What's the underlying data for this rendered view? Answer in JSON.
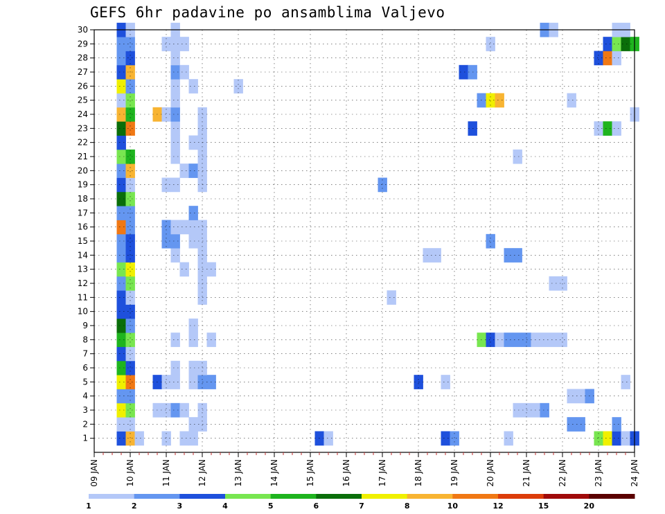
{
  "chart_data": {
    "type": "heatmap",
    "title": "GEFS 6hr padavine po ansamblima Valjevo",
    "x_tick_labels": [
      "09 JAN",
      "10 JAN",
      "11 JAN",
      "12 JAN",
      "13 JAN",
      "14 JAN",
      "15 JAN",
      "16 JAN",
      "17 JAN",
      "18 JAN",
      "19 JAN",
      "20 JAN",
      "21 JAN",
      "22 JAN",
      "23 JAN",
      "24 JAN"
    ],
    "y_tick_labels": [
      "1",
      "2",
      "3",
      "4",
      "5",
      "6",
      "7",
      "8",
      "9",
      "10",
      "11",
      "12",
      "13",
      "14",
      "15",
      "16",
      "17",
      "18",
      "19",
      "20",
      "21",
      "22",
      "23",
      "24",
      "25",
      "26",
      "27",
      "28",
      "29",
      "30"
    ],
    "ylim": [
      0.5,
      30.5
    ],
    "x_steps_per_day": 4,
    "xlim_steps": [
      0,
      60
    ],
    "legend": {
      "thresholds": [
        1,
        2,
        3,
        4,
        5,
        6,
        7,
        8,
        10,
        12,
        15,
        20
      ],
      "colors": [
        "#b4c8f8",
        "#6496f0",
        "#1e50dc",
        "#78e650",
        "#1eb41e",
        "#0a6e0a",
        "#f0f000",
        "#f8b432",
        "#f07814",
        "#dc3c0a",
        "#a00a0a",
        "#5a0000"
      ]
    },
    "colors": {
      "1": "#b4c8f8",
      "2": "#6496f0",
      "3": "#1e50dc",
      "4": "#78e650",
      "5": "#1eb41e",
      "6": "#0a6e0a",
      "7": "#f0f000",
      "8": "#f8b432",
      "10": "#f07814"
    },
    "cells": [
      [
        1,
        3,
        3
      ],
      [
        1,
        4,
        8
      ],
      [
        1,
        5,
        1
      ],
      [
        1,
        8,
        1
      ],
      [
        1,
        10,
        1
      ],
      [
        1,
        11,
        1
      ],
      [
        1,
        25,
        3
      ],
      [
        1,
        26,
        1
      ],
      [
        1,
        39,
        3
      ],
      [
        1,
        40,
        2
      ],
      [
        1,
        46,
        1
      ],
      [
        1,
        56,
        4
      ],
      [
        1,
        57,
        7
      ],
      [
        1,
        58,
        3
      ],
      [
        1,
        59,
        1
      ],
      [
        1,
        60,
        3
      ],
      [
        2,
        3,
        1
      ],
      [
        2,
        4,
        1
      ],
      [
        2,
        11,
        1
      ],
      [
        2,
        12,
        1
      ],
      [
        2,
        53,
        2
      ],
      [
        2,
        54,
        2
      ],
      [
        2,
        58,
        2
      ],
      [
        3,
        3,
        7
      ],
      [
        3,
        4,
        4
      ],
      [
        3,
        7,
        1
      ],
      [
        3,
        8,
        1
      ],
      [
        3,
        9,
        2
      ],
      [
        3,
        10,
        1
      ],
      [
        3,
        12,
        1
      ],
      [
        3,
        47,
        1
      ],
      [
        3,
        48,
        1
      ],
      [
        3,
        49,
        1
      ],
      [
        3,
        50,
        2
      ],
      [
        4,
        3,
        2
      ],
      [
        4,
        4,
        2
      ],
      [
        4,
        53,
        1
      ],
      [
        4,
        54,
        1
      ],
      [
        4,
        55,
        2
      ],
      [
        5,
        3,
        7
      ],
      [
        5,
        4,
        10
      ],
      [
        5,
        7,
        3
      ],
      [
        5,
        8,
        1
      ],
      [
        5,
        9,
        1
      ],
      [
        5,
        11,
        1
      ],
      [
        5,
        12,
        2
      ],
      [
        5,
        13,
        2
      ],
      [
        5,
        36,
        3
      ],
      [
        5,
        39,
        1
      ],
      [
        5,
        59,
        1
      ],
      [
        6,
        3,
        5
      ],
      [
        6,
        4,
        3
      ],
      [
        6,
        9,
        1
      ],
      [
        6,
        11,
        1
      ],
      [
        6,
        12,
        1
      ],
      [
        7,
        3,
        3
      ],
      [
        7,
        4,
        1
      ],
      [
        8,
        3,
        5
      ],
      [
        8,
        4,
        4
      ],
      [
        8,
        9,
        1
      ],
      [
        8,
        11,
        1
      ],
      [
        8,
        13,
        1
      ],
      [
        8,
        43,
        4
      ],
      [
        8,
        44,
        3
      ],
      [
        8,
        45,
        1
      ],
      [
        8,
        46,
        2
      ],
      [
        8,
        47,
        2
      ],
      [
        8,
        48,
        2
      ],
      [
        8,
        49,
        1
      ],
      [
        8,
        50,
        1
      ],
      [
        8,
        51,
        1
      ],
      [
        8,
        52,
        1
      ],
      [
        9,
        3,
        6
      ],
      [
        9,
        4,
        2
      ],
      [
        9,
        11,
        1
      ],
      [
        10,
        3,
        3
      ],
      [
        10,
        4,
        3
      ],
      [
        11,
        3,
        3
      ],
      [
        11,
        4,
        1
      ],
      [
        11,
        12,
        1
      ],
      [
        11,
        33,
        1
      ],
      [
        12,
        3,
        2
      ],
      [
        12,
        4,
        4
      ],
      [
        12,
        12,
        1
      ],
      [
        12,
        51,
        1
      ],
      [
        12,
        52,
        1
      ],
      [
        13,
        3,
        4
      ],
      [
        13,
        4,
        7
      ],
      [
        13,
        10,
        1
      ],
      [
        13,
        12,
        1
      ],
      [
        13,
        13,
        1
      ],
      [
        14,
        3,
        2
      ],
      [
        14,
        4,
        3
      ],
      [
        14,
        9,
        1
      ],
      [
        14,
        12,
        1
      ],
      [
        14,
        37,
        1
      ],
      [
        14,
        38,
        1
      ],
      [
        14,
        46,
        2
      ],
      [
        14,
        47,
        2
      ],
      [
        15,
        3,
        2
      ],
      [
        15,
        4,
        3
      ],
      [
        15,
        8,
        2
      ],
      [
        15,
        9,
        2
      ],
      [
        15,
        11,
        1
      ],
      [
        15,
        12,
        1
      ],
      [
        15,
        44,
        2
      ],
      [
        16,
        3,
        10
      ],
      [
        16,
        4,
        2
      ],
      [
        16,
        8,
        2
      ],
      [
        16,
        9,
        1
      ],
      [
        16,
        10,
        1
      ],
      [
        16,
        11,
        1
      ],
      [
        16,
        12,
        1
      ],
      [
        17,
        3,
        2
      ],
      [
        17,
        4,
        2
      ],
      [
        17,
        11,
        2
      ],
      [
        18,
        3,
        6
      ],
      [
        18,
        4,
        4
      ],
      [
        19,
        3,
        3
      ],
      [
        19,
        4,
        1
      ],
      [
        19,
        8,
        1
      ],
      [
        19,
        9,
        1
      ],
      [
        19,
        12,
        1
      ],
      [
        19,
        32,
        2
      ],
      [
        20,
        3,
        2
      ],
      [
        20,
        4,
        8
      ],
      [
        20,
        10,
        1
      ],
      [
        20,
        11,
        2
      ],
      [
        20,
        12,
        1
      ],
      [
        21,
        3,
        4
      ],
      [
        21,
        4,
        5
      ],
      [
        21,
        9,
        1
      ],
      [
        21,
        12,
        1
      ],
      [
        21,
        47,
        1
      ],
      [
        22,
        3,
        3
      ],
      [
        22,
        9,
        1
      ],
      [
        22,
        11,
        1
      ],
      [
        22,
        12,
        1
      ],
      [
        23,
        3,
        6
      ],
      [
        23,
        4,
        10
      ],
      [
        23,
        9,
        1
      ],
      [
        23,
        12,
        1
      ],
      [
        23,
        42,
        3
      ],
      [
        23,
        56,
        1
      ],
      [
        23,
        57,
        5
      ],
      [
        23,
        58,
        1
      ],
      [
        24,
        3,
        8
      ],
      [
        24,
        4,
        5
      ],
      [
        24,
        7,
        8
      ],
      [
        24,
        8,
        1
      ],
      [
        24,
        9,
        2
      ],
      [
        24,
        12,
        1
      ],
      [
        24,
        60,
        1
      ],
      [
        25,
        3,
        1
      ],
      [
        25,
        4,
        4
      ],
      [
        25,
        9,
        1
      ],
      [
        25,
        43,
        2
      ],
      [
        25,
        44,
        7
      ],
      [
        25,
        45,
        8
      ],
      [
        25,
        53,
        1
      ],
      [
        26,
        3,
        7
      ],
      [
        26,
        4,
        2
      ],
      [
        26,
        9,
        1
      ],
      [
        26,
        11,
        1
      ],
      [
        26,
        16,
        1
      ],
      [
        27,
        3,
        3
      ],
      [
        27,
        4,
        8
      ],
      [
        27,
        9,
        2
      ],
      [
        27,
        10,
        1
      ],
      [
        27,
        41,
        3
      ],
      [
        27,
        42,
        2
      ],
      [
        28,
        3,
        2
      ],
      [
        28,
        4,
        3
      ],
      [
        28,
        9,
        1
      ],
      [
        28,
        56,
        3
      ],
      [
        28,
        57,
        10
      ],
      [
        28,
        58,
        1
      ],
      [
        29,
        3,
        2
      ],
      [
        29,
        4,
        2
      ],
      [
        29,
        8,
        1
      ],
      [
        29,
        9,
        1
      ],
      [
        29,
        10,
        1
      ],
      [
        29,
        44,
        1
      ],
      [
        29,
        57,
        3
      ],
      [
        29,
        58,
        4
      ],
      [
        29,
        59,
        6
      ],
      [
        29,
        60,
        5
      ],
      [
        30,
        3,
        3
      ],
      [
        30,
        4,
        1
      ],
      [
        30,
        9,
        1
      ],
      [
        30,
        50,
        2
      ],
      [
        30,
        51,
        1
      ],
      [
        30,
        58,
        1
      ],
      [
        30,
        59,
        1
      ]
    ]
  }
}
